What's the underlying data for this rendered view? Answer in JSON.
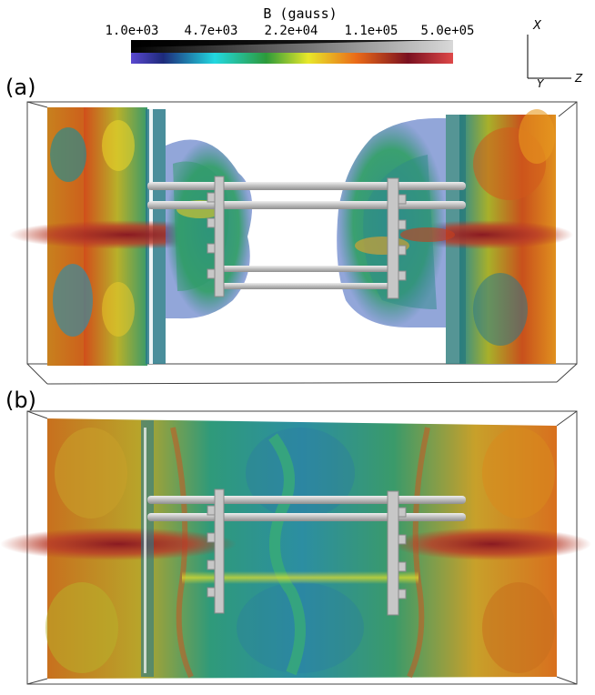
{
  "colorbar": {
    "title": "B (gauss)",
    "ticks": [
      "1.0e+03",
      "4.7e+03",
      "2.2e+04",
      "1.1e+05",
      "5.0e+05"
    ]
  },
  "axes_triad": {
    "x": "X",
    "y": "Y",
    "z": "Z"
  },
  "panels": [
    {
      "label": "(a)"
    },
    {
      "label": "(b)"
    }
  ],
  "colors": {
    "low": "#4a3fc8",
    "cyan": "#1fd4d9",
    "green": "#3aa63a",
    "yellow": "#e8e82a",
    "orange": "#e87a1e",
    "darkred": "#8a1520",
    "high": "#d94040",
    "rod": "#c9c9c9"
  }
}
